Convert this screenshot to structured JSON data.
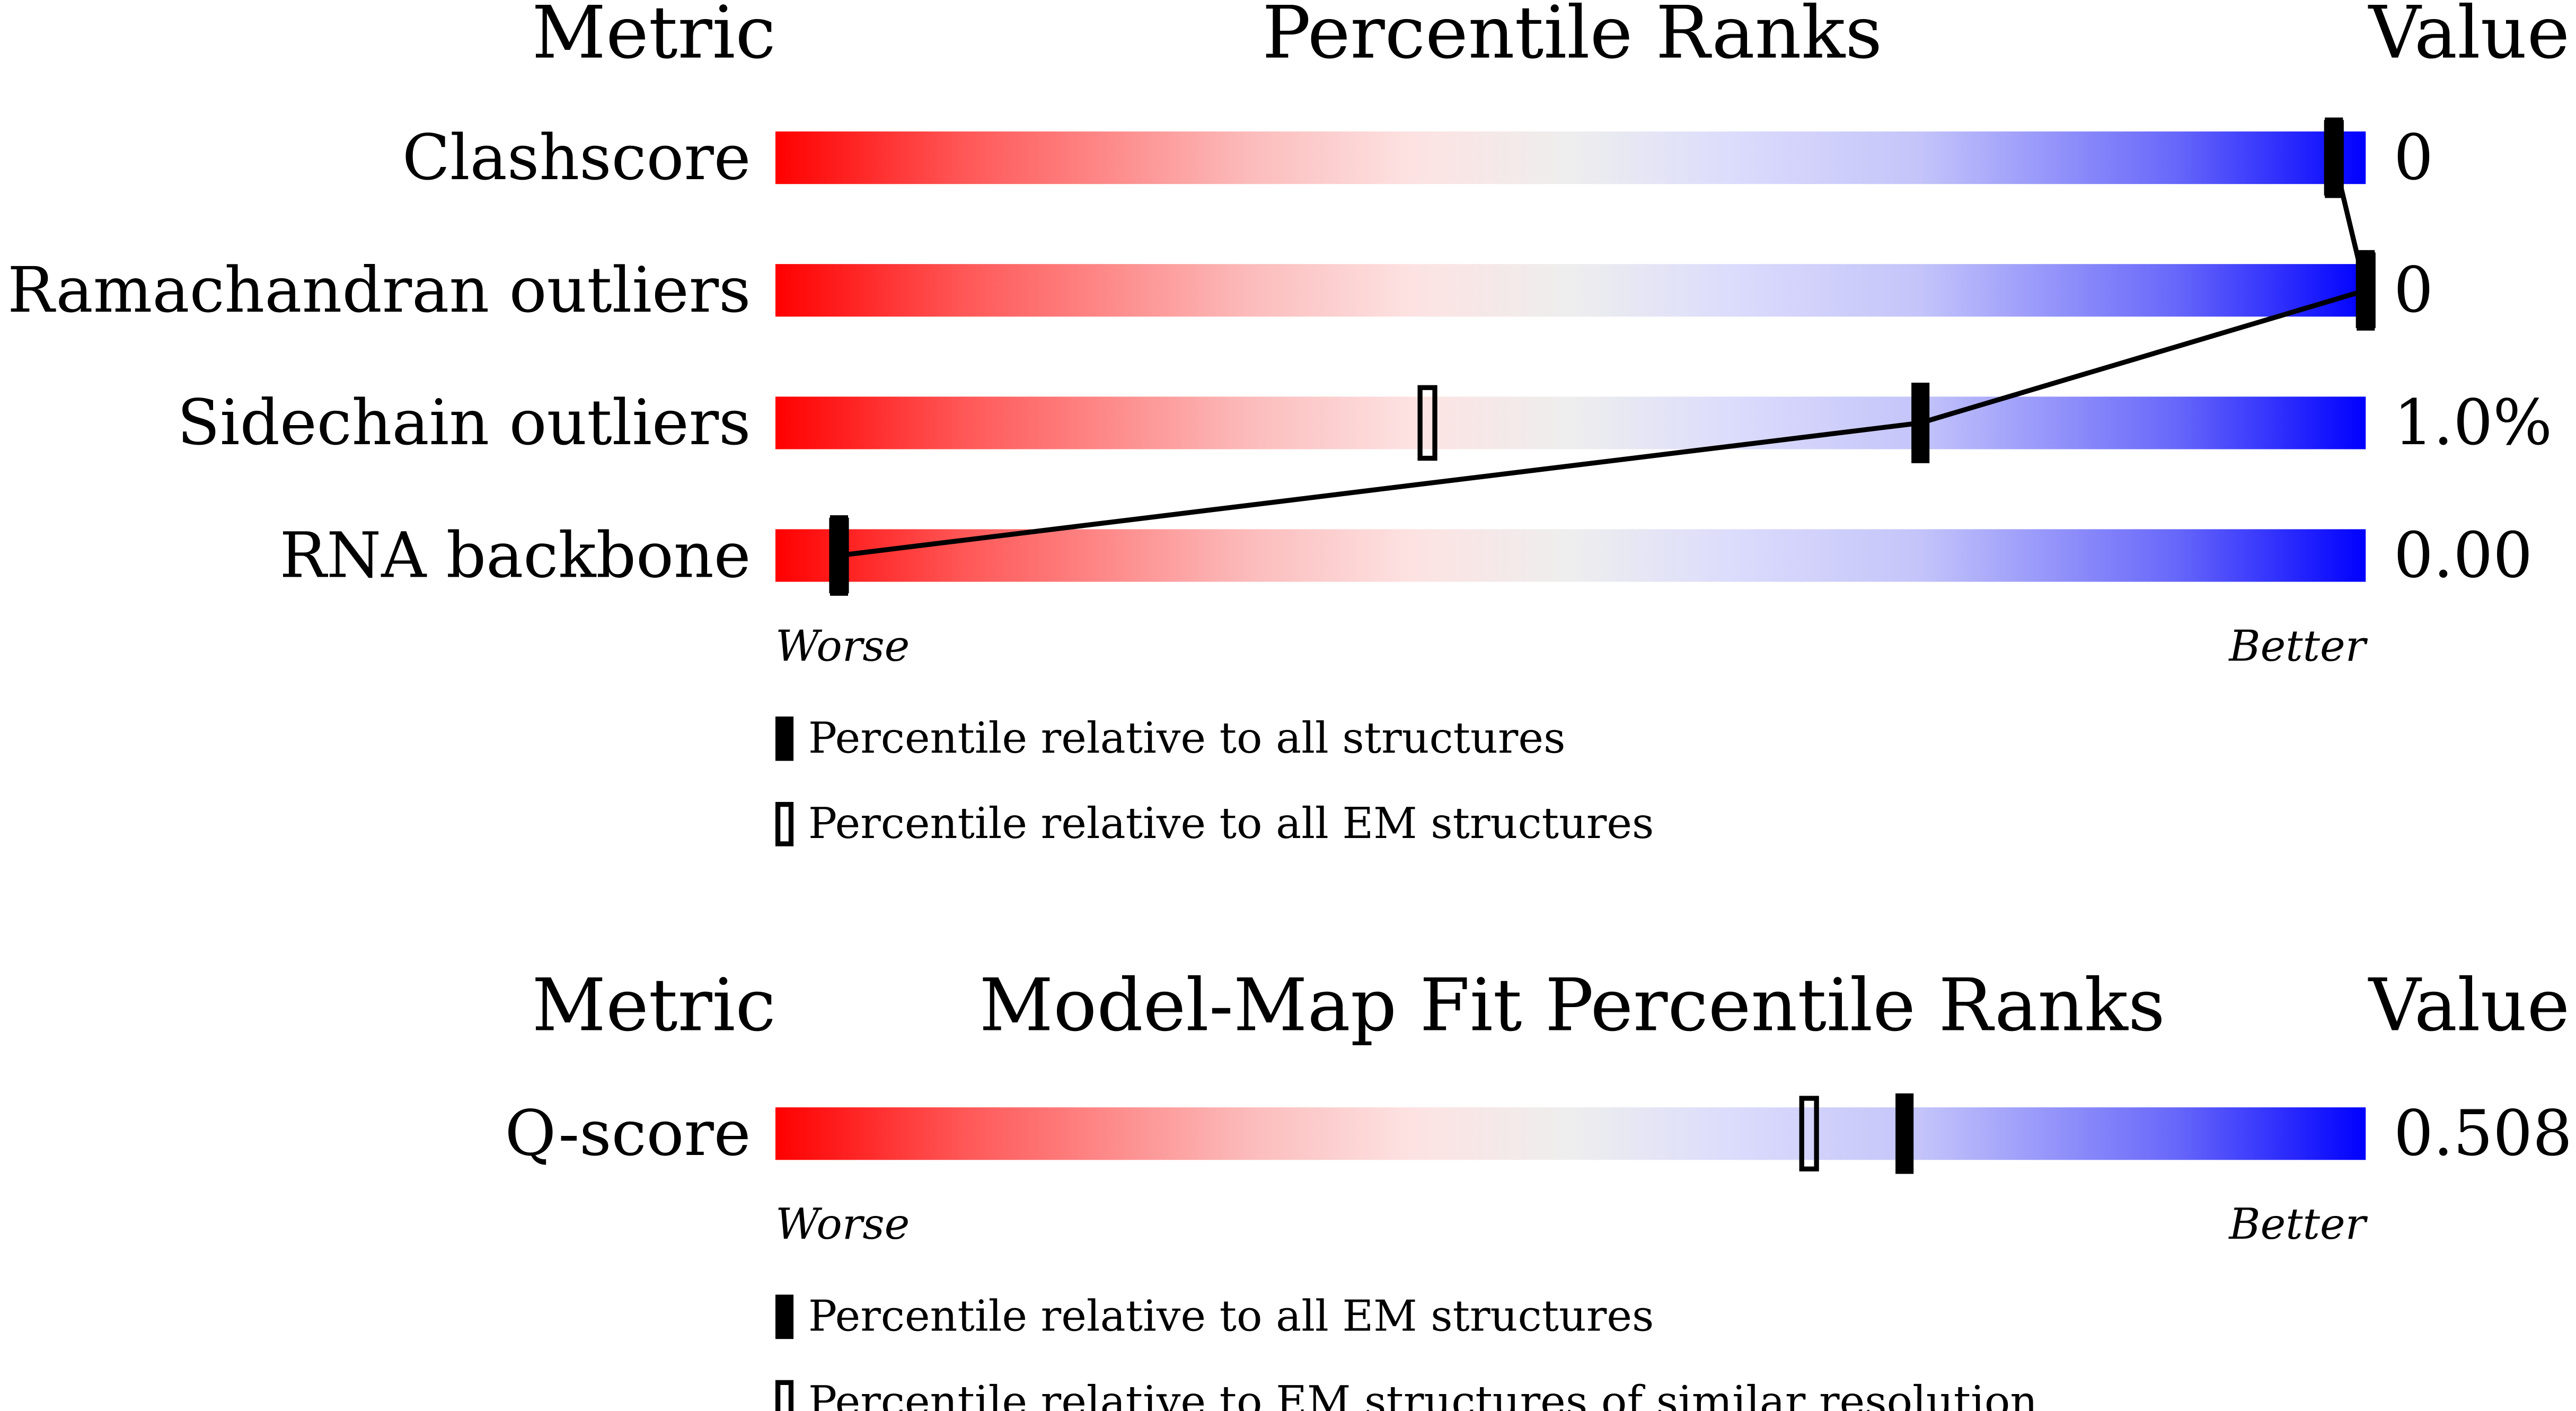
{
  "chart_data": [
    {
      "type": "percentile",
      "title": "Percentile Ranks",
      "metric_header": "Metric",
      "value_header": "Value",
      "categories": [
        "Clashscore",
        "Ramachandran outliers",
        "Sidechain outliers",
        "RNA backbone"
      ],
      "metric_values": [
        "0",
        "0",
        "1.0%",
        "0.00"
      ],
      "xlim": [
        0,
        100
      ],
      "low_label": "Worse",
      "high_label": "Better",
      "connect": true,
      "series": [
        {
          "name": "Percentile relative to all structures",
          "style": "filled",
          "color": "#000000",
          "values": [
            98,
            100,
            72,
            4
          ]
        },
        {
          "name": "Percentile relative to all EM structures",
          "style": "open",
          "color": "#000000",
          "values": [
            98,
            100,
            41,
            4
          ]
        }
      ]
    },
    {
      "type": "percentile",
      "title": "Model-Map Fit Percentile Ranks",
      "metric_header": "Metric",
      "value_header": "Value",
      "categories": [
        "Q-score"
      ],
      "metric_values": [
        "0.508"
      ],
      "xlim": [
        0,
        100
      ],
      "low_label": "Worse",
      "high_label": "Better",
      "connect": false,
      "series": [
        {
          "name": "Percentile relative to all EM structures",
          "style": "filled",
          "color": "#000000",
          "values": [
            71
          ]
        },
        {
          "name": "Percentile relative to EM structures of similar resolution",
          "style": "open",
          "color": "#000000",
          "values": [
            65
          ]
        }
      ]
    }
  ]
}
